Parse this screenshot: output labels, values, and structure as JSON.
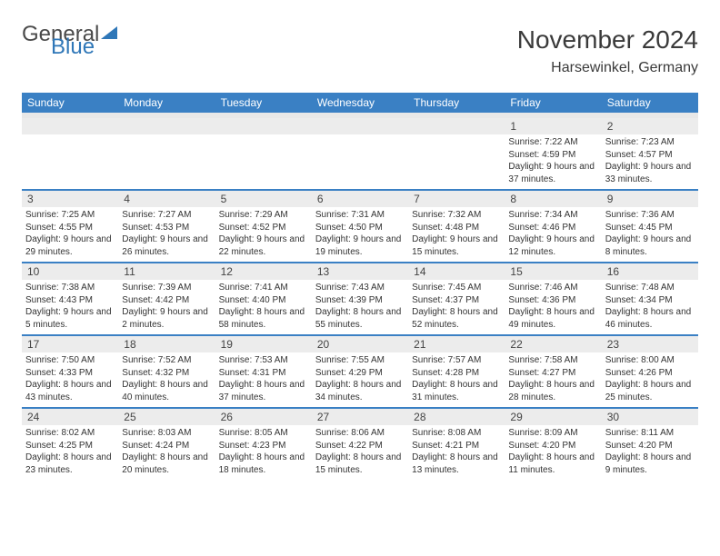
{
  "logo": {
    "text1": "General",
    "text2": "Blue"
  },
  "title": "November 2024",
  "location": "Harsewinkel, Germany",
  "colors": {
    "header_bg": "#3a80c4",
    "header_text": "#ffffff",
    "daynum_bg": "#ececec",
    "row_border": "#3a80c4",
    "text": "#333333",
    "logo_gray": "#4a4a4a",
    "logo_blue": "#2f77b8"
  },
  "weekdays": [
    "Sunday",
    "Monday",
    "Tuesday",
    "Wednesday",
    "Thursday",
    "Friday",
    "Saturday"
  ],
  "weeks": [
    [
      null,
      null,
      null,
      null,
      null,
      {
        "n": "1",
        "sr": "7:22 AM",
        "ss": "4:59 PM",
        "dl": "9 hours and 37 minutes."
      },
      {
        "n": "2",
        "sr": "7:23 AM",
        "ss": "4:57 PM",
        "dl": "9 hours and 33 minutes."
      }
    ],
    [
      {
        "n": "3",
        "sr": "7:25 AM",
        "ss": "4:55 PM",
        "dl": "9 hours and 29 minutes."
      },
      {
        "n": "4",
        "sr": "7:27 AM",
        "ss": "4:53 PM",
        "dl": "9 hours and 26 minutes."
      },
      {
        "n": "5",
        "sr": "7:29 AM",
        "ss": "4:52 PM",
        "dl": "9 hours and 22 minutes."
      },
      {
        "n": "6",
        "sr": "7:31 AM",
        "ss": "4:50 PM",
        "dl": "9 hours and 19 minutes."
      },
      {
        "n": "7",
        "sr": "7:32 AM",
        "ss": "4:48 PM",
        "dl": "9 hours and 15 minutes."
      },
      {
        "n": "8",
        "sr": "7:34 AM",
        "ss": "4:46 PM",
        "dl": "9 hours and 12 minutes."
      },
      {
        "n": "9",
        "sr": "7:36 AM",
        "ss": "4:45 PM",
        "dl": "9 hours and 8 minutes."
      }
    ],
    [
      {
        "n": "10",
        "sr": "7:38 AM",
        "ss": "4:43 PM",
        "dl": "9 hours and 5 minutes."
      },
      {
        "n": "11",
        "sr": "7:39 AM",
        "ss": "4:42 PM",
        "dl": "9 hours and 2 minutes."
      },
      {
        "n": "12",
        "sr": "7:41 AM",
        "ss": "4:40 PM",
        "dl": "8 hours and 58 minutes."
      },
      {
        "n": "13",
        "sr": "7:43 AM",
        "ss": "4:39 PM",
        "dl": "8 hours and 55 minutes."
      },
      {
        "n": "14",
        "sr": "7:45 AM",
        "ss": "4:37 PM",
        "dl": "8 hours and 52 minutes."
      },
      {
        "n": "15",
        "sr": "7:46 AM",
        "ss": "4:36 PM",
        "dl": "8 hours and 49 minutes."
      },
      {
        "n": "16",
        "sr": "7:48 AM",
        "ss": "4:34 PM",
        "dl": "8 hours and 46 minutes."
      }
    ],
    [
      {
        "n": "17",
        "sr": "7:50 AM",
        "ss": "4:33 PM",
        "dl": "8 hours and 43 minutes."
      },
      {
        "n": "18",
        "sr": "7:52 AM",
        "ss": "4:32 PM",
        "dl": "8 hours and 40 minutes."
      },
      {
        "n": "19",
        "sr": "7:53 AM",
        "ss": "4:31 PM",
        "dl": "8 hours and 37 minutes."
      },
      {
        "n": "20",
        "sr": "7:55 AM",
        "ss": "4:29 PM",
        "dl": "8 hours and 34 minutes."
      },
      {
        "n": "21",
        "sr": "7:57 AM",
        "ss": "4:28 PM",
        "dl": "8 hours and 31 minutes."
      },
      {
        "n": "22",
        "sr": "7:58 AM",
        "ss": "4:27 PM",
        "dl": "8 hours and 28 minutes."
      },
      {
        "n": "23",
        "sr": "8:00 AM",
        "ss": "4:26 PM",
        "dl": "8 hours and 25 minutes."
      }
    ],
    [
      {
        "n": "24",
        "sr": "8:02 AM",
        "ss": "4:25 PM",
        "dl": "8 hours and 23 minutes."
      },
      {
        "n": "25",
        "sr": "8:03 AM",
        "ss": "4:24 PM",
        "dl": "8 hours and 20 minutes."
      },
      {
        "n": "26",
        "sr": "8:05 AM",
        "ss": "4:23 PM",
        "dl": "8 hours and 18 minutes."
      },
      {
        "n": "27",
        "sr": "8:06 AM",
        "ss": "4:22 PM",
        "dl": "8 hours and 15 minutes."
      },
      {
        "n": "28",
        "sr": "8:08 AM",
        "ss": "4:21 PM",
        "dl": "8 hours and 13 minutes."
      },
      {
        "n": "29",
        "sr": "8:09 AM",
        "ss": "4:20 PM",
        "dl": "8 hours and 11 minutes."
      },
      {
        "n": "30",
        "sr": "8:11 AM",
        "ss": "4:20 PM",
        "dl": "8 hours and 9 minutes."
      }
    ]
  ],
  "labels": {
    "sunrise": "Sunrise:",
    "sunset": "Sunset:",
    "daylight": "Daylight:"
  }
}
